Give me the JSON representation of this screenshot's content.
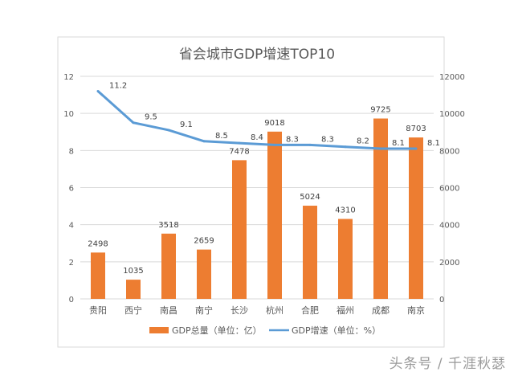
{
  "chart_data": {
    "type": "bar+line",
    "title": "省会城市GDP增速TOP10",
    "categories": [
      "贵阳",
      "西宁",
      "南昌",
      "南宁",
      "长沙",
      "杭州",
      "合肥",
      "福州",
      "成都",
      "南京"
    ],
    "series": [
      {
        "name": "GDP总量（单位：亿）",
        "type": "bar",
        "axis": "right",
        "color": "#ED7D31",
        "values": [
          2498,
          1035,
          3518,
          2659,
          7478,
          9018,
          5024,
          4310,
          9725,
          8703
        ]
      },
      {
        "name": "GDP增速（单位：%）",
        "type": "line",
        "axis": "left",
        "color": "#5B9BD5",
        "values": [
          11.2,
          9.5,
          9.1,
          8.5,
          8.4,
          8.3,
          8.3,
          8.2,
          8.1,
          8.1
        ]
      }
    ],
    "left_axis": {
      "range": [
        0,
        12
      ],
      "ticks": [
        "0",
        "2",
        "4",
        "6",
        "8",
        "10",
        "12"
      ]
    },
    "right_axis": {
      "range": [
        0,
        12000
      ],
      "ticks": [
        "0",
        "2000",
        "4000",
        "6000",
        "8000",
        "10000",
        "12000"
      ]
    },
    "grid": true,
    "legend": "bottom"
  },
  "watermark": "头条号 / 千涯秋瑟"
}
